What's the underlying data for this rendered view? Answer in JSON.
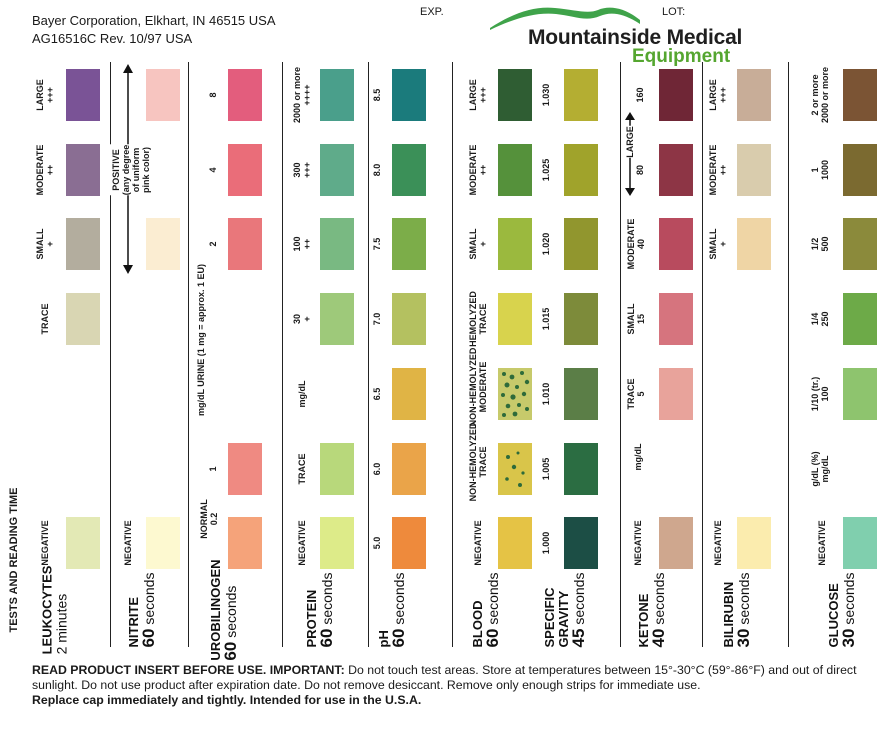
{
  "header": {
    "address": "Bayer Corporation, Elkhart, IN 46515 USA",
    "revision": "AG16516C  Rev. 10/97  USA",
    "exp_label": "EXP.",
    "lot_label": "LOT:",
    "logo_title": "Mountainside Medical",
    "logo_sub": "Equipment"
  },
  "tests_title": "TESTS AND READING TIME",
  "columns": {
    "leukocytes": {
      "name": "LEUKOCYTES",
      "time": "2 minutes",
      "time_num": "2",
      "time_unit": " minutes",
      "levels": [
        "NEGATIVE",
        "TRACE",
        "SMALL\n+",
        "MODERATE\n++",
        "LARGE\n+++"
      ]
    },
    "nitrite": {
      "name": "NITRITE",
      "time_num": "60",
      "time_unit": " seconds",
      "levels": [
        "NEGATIVE",
        "POSITIVE\n(any degree\nof uniform\npink color)"
      ]
    },
    "urobilinogen": {
      "name": "UROBILINOGEN",
      "time_num": "60",
      "time_unit": " seconds",
      "unit": "mg/dL URINE (1 mg = approx. 1 EU)",
      "levels": [
        "NORMAL\n0.2",
        "1",
        "2",
        "4",
        "8"
      ]
    },
    "protein": {
      "name": "PROTEIN",
      "time_num": "60",
      "time_unit": " seconds",
      "unit": "mg/dL",
      "levels": [
        "NEGATIVE",
        "TRACE",
        "30\n+",
        "100\n++",
        "300\n+++",
        "2000 or more\n++++"
      ]
    },
    "ph": {
      "name": "pH",
      "time_num": "60",
      "time_unit": " seconds",
      "levels": [
        "5.0",
        "6.0",
        "6.5",
        "7.0",
        "7.5",
        "8.0",
        "8.5"
      ]
    },
    "blood": {
      "name": "BLOOD",
      "time_num": "60",
      "time_unit": " seconds",
      "levels": [
        "NEGATIVE",
        "NON-HEMOLYZED\nTRACE",
        "NON-HEMOLYZED\nMODERATE",
        "HEMOLYZED\nTRACE",
        "SMALL\n+",
        "MODERATE\n++",
        "LARGE\n+++"
      ]
    },
    "specific_gravity": {
      "name": "SPECIFIC\nGRAVITY",
      "time_num": "45",
      "time_unit": " seconds",
      "levels": [
        "1.000",
        "1.005",
        "1.010",
        "1.015",
        "1.020",
        "1.025",
        "1.030"
      ]
    },
    "ketone": {
      "name": "KETONE",
      "time_num": "40",
      "time_unit": " seconds",
      "unit": "mg/dL",
      "levels": [
        "NEGATIVE",
        "TRACE\n5",
        "SMALL\n15",
        "MODERATE\n40",
        "80",
        "160"
      ],
      "large_label": "LARGE"
    },
    "bilirubin": {
      "name": "BILIRUBIN",
      "time_num": "30",
      "time_unit": " seconds",
      "levels": [
        "NEGATIVE",
        "SMALL\n+",
        "MODERATE\n++",
        "LARGE\n+++"
      ]
    },
    "glucose": {
      "name": "GLUCOSE",
      "time_num": "30",
      "time_unit": " seconds",
      "unit": "g/dL (%)\nmg/dL",
      "levels": [
        "NEGATIVE",
        "1/10 (tr.)\n100",
        "1/4\n250",
        "1/2\n500",
        "1\n1000",
        "2 or more\n2000 or more"
      ]
    }
  },
  "footer": {
    "lead": "READ PRODUCT INSERT BEFORE USE. IMPORTANT:",
    "body": " Do not touch test areas. Store at temperatures between 15°-30°C (59°-86°F) and out of direct sunlight. Do not use product after expiration date. Do not remove desiccant. Remove only enough strips for immediate use.",
    "last": "Replace cap immediately and tightly. Intended for use in the U.S.A."
  },
  "colors": {
    "leu": [
      "#e3e9b5",
      "#d9d6b3",
      "#b3ad9e",
      "#8a6e93",
      "#7a5396"
    ],
    "nit": [
      "#fdf9d0",
      "#fbedd2",
      "#f7c5c0"
    ],
    "uro": [
      "#f5a37a",
      "#ef8a82",
      "#e9777b",
      "#ea6d79",
      "#e35d7d"
    ],
    "pro": [
      "#ddeb89",
      "#b8d87b",
      "#9ec97a",
      "#79b982",
      "#5fab8a",
      "#4a9f8b"
    ],
    "ph": [
      "#ee8a3c",
      "#eaa449",
      "#e0b445",
      "#b4c160",
      "#7cad49",
      "#3b9058",
      "#1b7b7c"
    ],
    "bld": [
      "#e5c345",
      "#d9c54a",
      "#c7ca6b",
      "#d8d34d",
      "#9bb93e",
      "#55913b",
      "#2f5d33"
    ],
    "sg": [
      "#1c4e45",
      "#2b6d42",
      "#5b7e47",
      "#7d8b3a",
      "#91962e",
      "#a0a32b",
      "#b4ae32"
    ],
    "ket": [
      "#cfa78e",
      "#e8a39b",
      "#d6747e",
      "#b84b5e",
      "#8d3545",
      "#6f2636"
    ],
    "bil": [
      "#fbecae",
      "#efd5a5",
      "#d9ccad",
      "#c8ad98"
    ],
    "glu": [
      "#80cfae",
      "#8ec46e",
      "#6daa48",
      "#8b8a3b",
      "#7b6a30",
      "#7b5434"
    ]
  }
}
